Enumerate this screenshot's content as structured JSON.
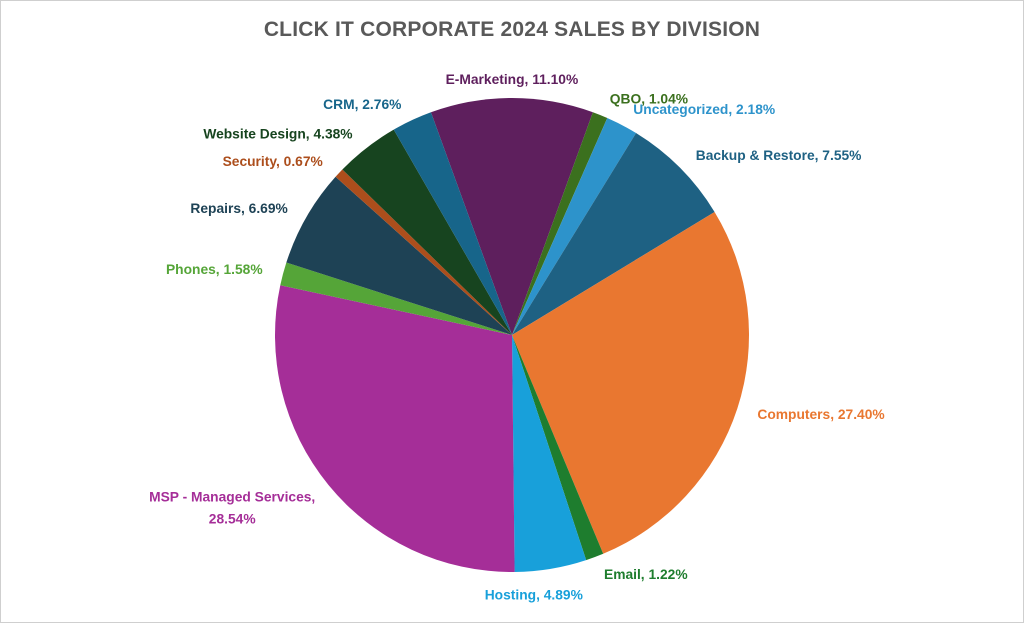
{
  "chart_data": {
    "type": "pie",
    "title": "CLICK IT CORPORATE 2024 SALES BY DIVISION",
    "title_color": "#595959",
    "background": "#FFFFFF",
    "border_color": "#CFCFCF",
    "legend": "none",
    "labels_position": "outside-end",
    "direction": "clockwise",
    "start_angle_deg": -20,
    "slices": [
      {
        "label": "E-Marketing",
        "value_pct": 11.1,
        "display": "E-Marketing, 11.10%",
        "color": "#5E1F5D"
      },
      {
        "label": "QBO",
        "value_pct": 1.04,
        "display": "QBO, 1.04%",
        "color": "#3B701E"
      },
      {
        "label": "Uncategorized",
        "value_pct": 2.18,
        "display": "Uncategorized, 2.18%",
        "color": "#2D93CB"
      },
      {
        "label": "Backup & Restore",
        "value_pct": 7.55,
        "display": "Backup & Restore, 7.55%",
        "color": "#1E6183"
      },
      {
        "label": "Computers",
        "value_pct": 27.4,
        "display": "Computers, 27.40%",
        "color": "#E97730"
      },
      {
        "label": "Email",
        "value_pct": 1.22,
        "display": "Email, 1.22%",
        "color": "#1E7D2E"
      },
      {
        "label": "Hosting",
        "value_pct": 4.89,
        "display": "Hosting, 4.89%",
        "color": "#18A0DA"
      },
      {
        "label": "MSP - Managed Services",
        "value_pct": 28.54,
        "display_lines": [
          "MSP - Managed Services,",
          "28.54%"
        ],
        "color": "#A52E98"
      },
      {
        "label": "Phones",
        "value_pct": 1.58,
        "display": "Phones, 1.58%",
        "color": "#55A538"
      },
      {
        "label": "Repairs",
        "value_pct": 6.69,
        "display": "Repairs, 6.69%",
        "color": "#1E4255"
      },
      {
        "label": "Security",
        "value_pct": 0.67,
        "display": "Security, 0.67%",
        "color": "#AC4E1C"
      },
      {
        "label": "Website Design",
        "value_pct": 4.38,
        "display": "Website Design, 4.38%",
        "color": "#17441F"
      },
      {
        "label": "CRM",
        "value_pct": 2.76,
        "display": "CRM, 2.76%",
        "color": "#17658A"
      }
    ]
  }
}
